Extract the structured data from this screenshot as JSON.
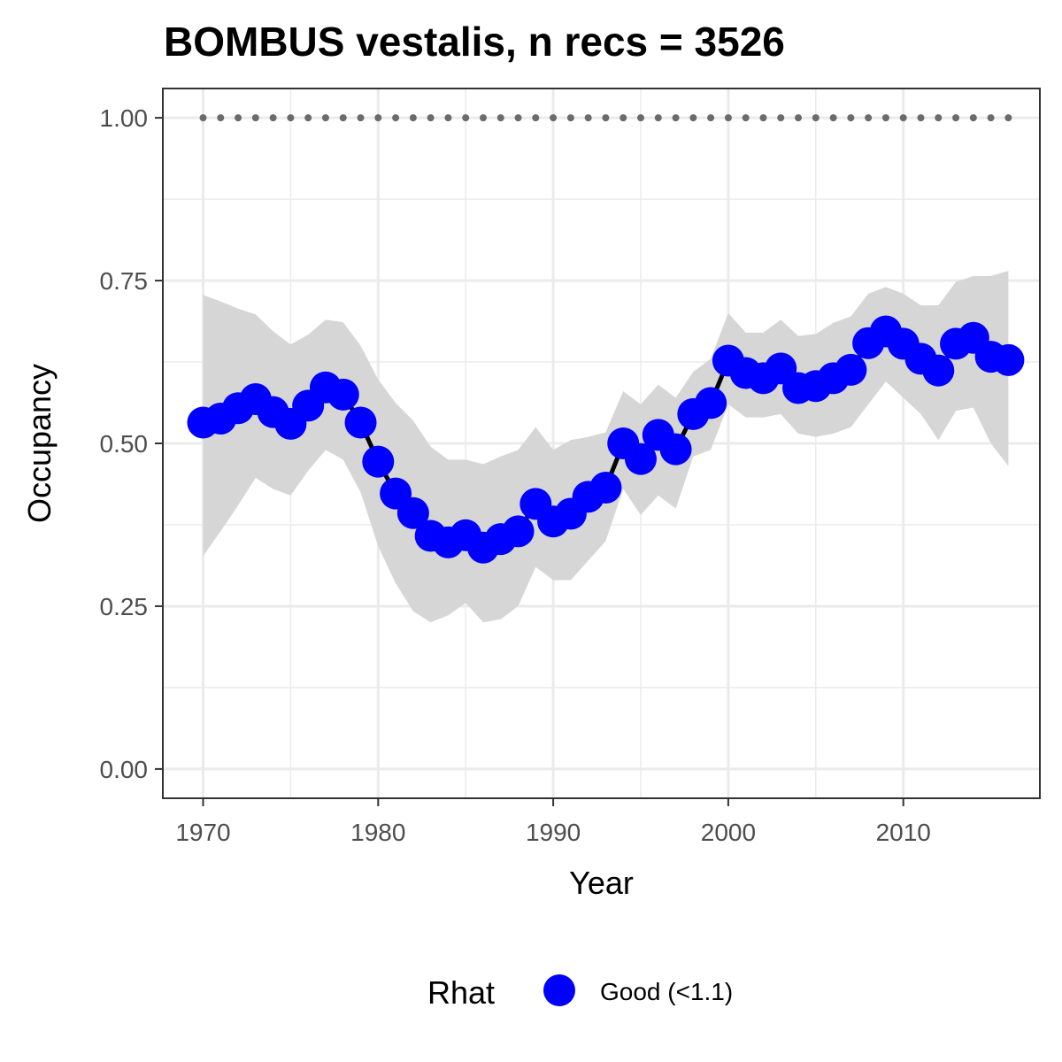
{
  "chart_data": {
    "type": "line",
    "title": "BOMBUS vestalis, n recs = 3526",
    "xlabel": "Year",
    "ylabel": "Occupancy",
    "xlim": [
      1967.7,
      2017.8
    ],
    "ylim": [
      -0.045,
      1.045
    ],
    "x_ticks": [
      1970,
      1980,
      1990,
      2000,
      2010
    ],
    "x_tick_labels": [
      "1970",
      "1980",
      "1990",
      "2000",
      "2010"
    ],
    "y_ticks": [
      0,
      0.25,
      0.5,
      0.75,
      1.0
    ],
    "y_tick_labels": [
      "0.00",
      "0.25",
      "0.50",
      "0.75",
      "1.00"
    ],
    "grid": true,
    "legend": {
      "title": "Rhat",
      "position": "bottom",
      "entries": [
        {
          "label": "Good (<1.1)",
          "color": "#0000ff"
        }
      ]
    },
    "colors": {
      "points": "#0000ff",
      "line": "#000000",
      "ribbon": "#d6d6d6",
      "reference": "#6b6b6b",
      "grid": "#ebebeb",
      "panel_border": "#333333"
    },
    "x": [
      1970,
      1971,
      1972,
      1973,
      1974,
      1975,
      1976,
      1977,
      1978,
      1979,
      1980,
      1981,
      1982,
      1983,
      1984,
      1985,
      1986,
      1987,
      1988,
      1989,
      1990,
      1991,
      1992,
      1993,
      1994,
      1995,
      1996,
      1997,
      1998,
      1999,
      2000,
      2001,
      2002,
      2003,
      2004,
      2005,
      2006,
      2007,
      2008,
      2009,
      2010,
      2011,
      2012,
      2013,
      2014,
      2015,
      2016
    ],
    "series": [
      {
        "name": "Good (<1.1)",
        "values": [
          0.532,
          0.538,
          0.554,
          0.568,
          0.548,
          0.53,
          0.558,
          0.586,
          0.575,
          0.532,
          0.472,
          0.423,
          0.393,
          0.358,
          0.348,
          0.359,
          0.34,
          0.353,
          0.365,
          0.407,
          0.38,
          0.392,
          0.418,
          0.432,
          0.5,
          0.476,
          0.513,
          0.491,
          0.545,
          0.562,
          0.627,
          0.608,
          0.6,
          0.615,
          0.585,
          0.588,
          0.6,
          0.613,
          0.654,
          0.672,
          0.653,
          0.63,
          0.612,
          0.653,
          0.662,
          0.633,
          0.628
        ],
        "lower": [
          0.327,
          0.365,
          0.405,
          0.447,
          0.43,
          0.42,
          0.458,
          0.49,
          0.475,
          0.425,
          0.342,
          0.285,
          0.242,
          0.225,
          0.236,
          0.255,
          0.225,
          0.23,
          0.25,
          0.31,
          0.29,
          0.29,
          0.32,
          0.35,
          0.43,
          0.39,
          0.42,
          0.4,
          0.48,
          0.49,
          0.56,
          0.54,
          0.54,
          0.545,
          0.515,
          0.51,
          0.515,
          0.525,
          0.56,
          0.595,
          0.57,
          0.545,
          0.505,
          0.55,
          0.555,
          0.5,
          0.465
        ],
        "upper": [
          0.728,
          0.718,
          0.707,
          0.698,
          0.672,
          0.652,
          0.667,
          0.69,
          0.686,
          0.65,
          0.598,
          0.562,
          0.535,
          0.495,
          0.475,
          0.475,
          0.468,
          0.48,
          0.49,
          0.525,
          0.49,
          0.505,
          0.51,
          0.517,
          0.58,
          0.56,
          0.59,
          0.57,
          0.61,
          0.63,
          0.7,
          0.67,
          0.67,
          0.69,
          0.665,
          0.668,
          0.685,
          0.695,
          0.73,
          0.74,
          0.73,
          0.712,
          0.712,
          0.748,
          0.757,
          0.757,
          0.765
        ]
      }
    ],
    "reference_line": {
      "y": 1.0,
      "style": "dotted"
    }
  }
}
